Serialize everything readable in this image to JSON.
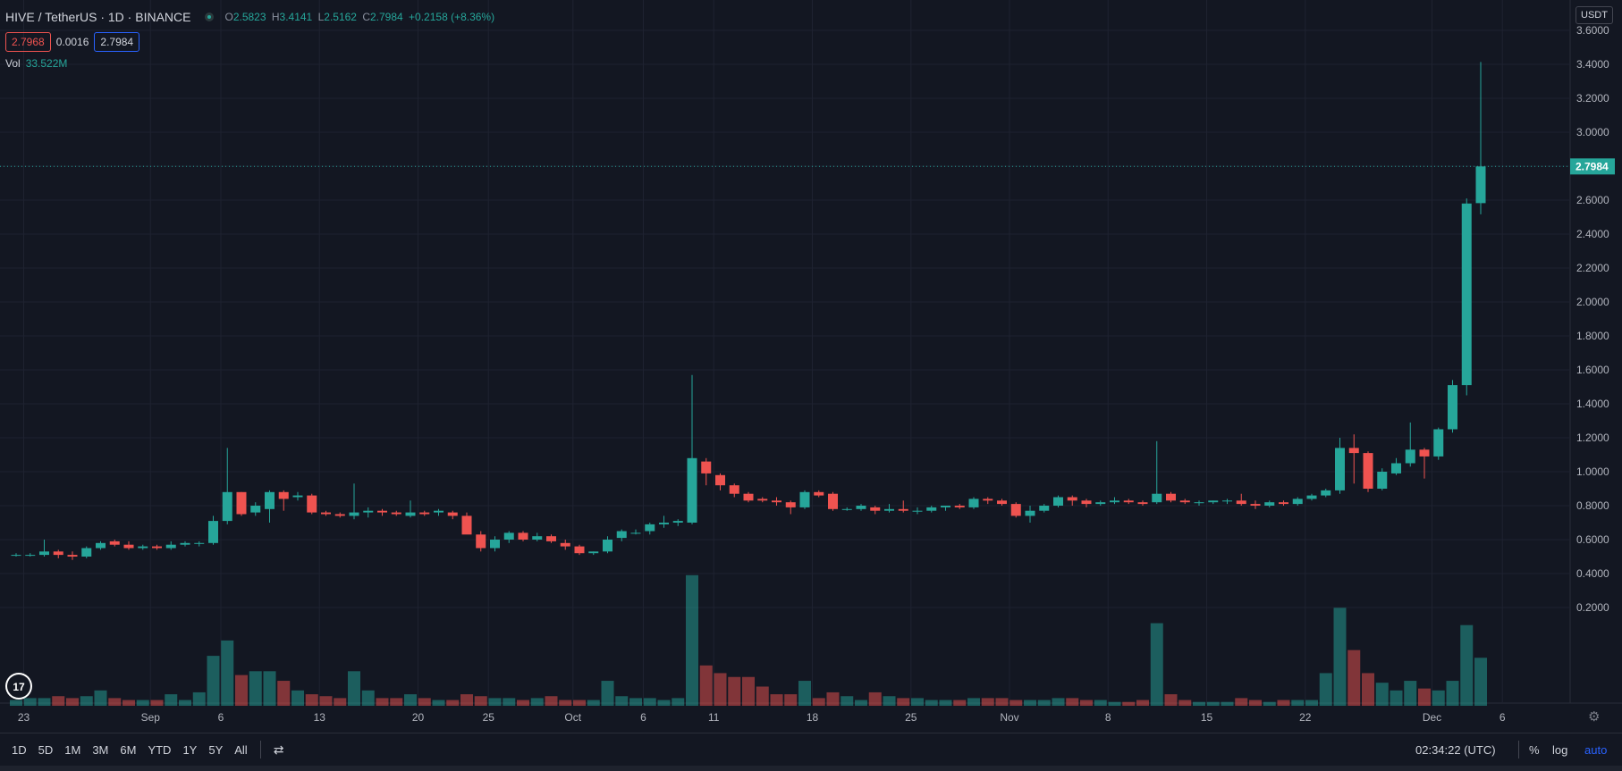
{
  "header": {
    "symbol": "HIVE / TetherUS · 1D · BINANCE",
    "ohlc": {
      "o_label": "O",
      "o": "2.5823",
      "h_label": "H",
      "h": "3.4141",
      "l_label": "L",
      "l": "2.5162",
      "c_label": "C",
      "c": "2.7984",
      "change": "+0.2158 (+8.36%)"
    },
    "bid": "2.7968",
    "spread": "0.0016",
    "ask": "2.7984",
    "vol_label": "Vol",
    "vol_value": "33.522M"
  },
  "axis_unit": "USDT",
  "last_price": "2.7984",
  "bottom": {
    "ranges": [
      "1D",
      "5D",
      "1M",
      "3M",
      "6M",
      "YTD",
      "1Y",
      "5Y",
      "All"
    ],
    "time": "02:34:22 (UTC)",
    "percent": "%",
    "log": "log",
    "auto": "auto"
  },
  "colors": {
    "up": "#26a69a",
    "down": "#ef5350",
    "bg": "#131722",
    "grid": "#1e2230"
  },
  "chart_data": {
    "type": "candlestick",
    "symbol": "HIVE / TetherUS",
    "interval": "1D",
    "exchange": "BINANCE",
    "y_range": [
      0.2,
      3.6
    ],
    "y_ticks": [
      "3.6000",
      "3.4000",
      "3.2000",
      "3.0000",
      "2.8000",
      "2.6000",
      "2.4000",
      "2.2000",
      "2.0000",
      "1.8000",
      "1.6000",
      "1.4000",
      "1.2000",
      "1.0000",
      "0.8000",
      "0.6000",
      "0.4000",
      "0.2000"
    ],
    "x_ticks": [
      {
        "label": "23",
        "index": 0
      },
      {
        "label": "Sep",
        "index": 9
      },
      {
        "label": "6",
        "index": 14
      },
      {
        "label": "13",
        "index": 21
      },
      {
        "label": "20",
        "index": 28
      },
      {
        "label": "25",
        "index": 33
      },
      {
        "label": "Oct",
        "index": 39
      },
      {
        "label": "6",
        "index": 44
      },
      {
        "label": "11",
        "index": 49
      },
      {
        "label": "18",
        "index": 56
      },
      {
        "label": "25",
        "index": 63
      },
      {
        "label": "Nov",
        "index": 70
      },
      {
        "label": "8",
        "index": 77
      },
      {
        "label": "15",
        "index": 84
      },
      {
        "label": "22",
        "index": 91
      },
      {
        "label": "Dec",
        "index": 100
      },
      {
        "label": "6",
        "index": 105
      }
    ],
    "candles": [
      [
        0.51,
        0.52,
        0.5,
        0.51,
        0.015
      ],
      [
        0.51,
        0.52,
        0.5,
        0.51,
        0.02
      ],
      [
        0.51,
        0.6,
        0.5,
        0.53,
        0.02
      ],
      [
        0.53,
        0.54,
        0.49,
        0.51,
        0.025
      ],
      [
        0.51,
        0.53,
        0.48,
        0.5,
        0.02
      ],
      [
        0.5,
        0.56,
        0.49,
        0.55,
        0.025
      ],
      [
        0.55,
        0.59,
        0.54,
        0.58,
        0.04
      ],
      [
        0.59,
        0.6,
        0.56,
        0.57,
        0.02
      ],
      [
        0.57,
        0.59,
        0.54,
        0.55,
        0.015
      ],
      [
        0.55,
        0.57,
        0.54,
        0.56,
        0.015
      ],
      [
        0.56,
        0.57,
        0.54,
        0.55,
        0.015
      ],
      [
        0.55,
        0.59,
        0.54,
        0.57,
        0.03
      ],
      [
        0.57,
        0.59,
        0.56,
        0.58,
        0.015
      ],
      [
        0.58,
        0.59,
        0.56,
        0.58,
        0.035
      ],
      [
        0.58,
        0.74,
        0.57,
        0.71,
        0.13
      ],
      [
        0.71,
        1.14,
        0.69,
        0.88,
        0.17
      ],
      [
        0.88,
        0.88,
        0.74,
        0.75,
        0.08
      ],
      [
        0.76,
        0.82,
        0.74,
        0.8,
        0.09
      ],
      [
        0.78,
        0.89,
        0.7,
        0.88,
        0.09
      ],
      [
        0.88,
        0.89,
        0.77,
        0.84,
        0.065
      ],
      [
        0.85,
        0.88,
        0.83,
        0.86,
        0.04
      ],
      [
        0.86,
        0.87,
        0.75,
        0.76,
        0.03
      ],
      [
        0.76,
        0.77,
        0.74,
        0.75,
        0.025
      ],
      [
        0.75,
        0.76,
        0.73,
        0.74,
        0.02
      ],
      [
        0.74,
        0.93,
        0.72,
        0.76,
        0.09
      ],
      [
        0.76,
        0.79,
        0.73,
        0.77,
        0.04
      ],
      [
        0.77,
        0.78,
        0.74,
        0.76,
        0.02
      ],
      [
        0.76,
        0.77,
        0.74,
        0.75,
        0.02
      ],
      [
        0.74,
        0.83,
        0.73,
        0.76,
        0.03
      ],
      [
        0.76,
        0.77,
        0.74,
        0.75,
        0.02
      ],
      [
        0.76,
        0.78,
        0.74,
        0.77,
        0.015
      ],
      [
        0.76,
        0.77,
        0.72,
        0.74,
        0.015
      ],
      [
        0.74,
        0.76,
        0.65,
        0.63,
        0.03
      ],
      [
        0.63,
        0.65,
        0.53,
        0.55,
        0.025
      ],
      [
        0.55,
        0.62,
        0.53,
        0.6,
        0.02
      ],
      [
        0.6,
        0.65,
        0.58,
        0.64,
        0.02
      ],
      [
        0.64,
        0.65,
        0.59,
        0.6,
        0.015
      ],
      [
        0.6,
        0.64,
        0.59,
        0.62,
        0.02
      ],
      [
        0.62,
        0.63,
        0.58,
        0.59,
        0.025
      ],
      [
        0.58,
        0.6,
        0.54,
        0.56,
        0.015
      ],
      [
        0.56,
        0.57,
        0.51,
        0.52,
        0.015
      ],
      [
        0.52,
        0.53,
        0.51,
        0.53,
        0.015
      ],
      [
        0.53,
        0.62,
        0.52,
        0.6,
        0.065
      ],
      [
        0.61,
        0.66,
        0.59,
        0.65,
        0.025
      ],
      [
        0.64,
        0.66,
        0.63,
        0.64,
        0.02
      ],
      [
        0.65,
        0.7,
        0.63,
        0.69,
        0.02
      ],
      [
        0.69,
        0.74,
        0.67,
        0.7,
        0.015
      ],
      [
        0.7,
        0.72,
        0.68,
        0.71,
        0.02
      ],
      [
        0.7,
        1.57,
        0.69,
        1.08,
        0.34
      ],
      [
        1.06,
        1.08,
        0.92,
        0.99,
        0.105
      ],
      [
        0.98,
        0.99,
        0.89,
        0.92,
        0.085
      ],
      [
        0.92,
        0.93,
        0.85,
        0.87,
        0.075
      ],
      [
        0.87,
        0.88,
        0.82,
        0.83,
        0.075
      ],
      [
        0.84,
        0.85,
        0.82,
        0.83,
        0.05
      ],
      [
        0.83,
        0.85,
        0.8,
        0.82,
        0.03
      ],
      [
        0.82,
        0.83,
        0.75,
        0.79,
        0.03
      ],
      [
        0.79,
        0.89,
        0.78,
        0.88,
        0.065
      ],
      [
        0.88,
        0.89,
        0.85,
        0.86,
        0.02
      ],
      [
        0.87,
        0.88,
        0.77,
        0.78,
        0.035
      ],
      [
        0.78,
        0.79,
        0.77,
        0.78,
        0.025
      ],
      [
        0.78,
        0.81,
        0.77,
        0.8,
        0.015
      ],
      [
        0.79,
        0.8,
        0.75,
        0.77,
        0.035
      ],
      [
        0.77,
        0.81,
        0.76,
        0.78,
        0.025
      ],
      [
        0.78,
        0.83,
        0.76,
        0.77,
        0.02
      ],
      [
        0.77,
        0.79,
        0.75,
        0.77,
        0.02
      ],
      [
        0.77,
        0.8,
        0.76,
        0.79,
        0.015
      ],
      [
        0.79,
        0.8,
        0.77,
        0.8,
        0.015
      ],
      [
        0.8,
        0.81,
        0.78,
        0.79,
        0.015
      ],
      [
        0.79,
        0.85,
        0.78,
        0.84,
        0.02
      ],
      [
        0.84,
        0.85,
        0.81,
        0.83,
        0.02
      ],
      [
        0.83,
        0.84,
        0.8,
        0.81,
        0.02
      ],
      [
        0.81,
        0.82,
        0.73,
        0.74,
        0.015
      ],
      [
        0.74,
        0.8,
        0.7,
        0.77,
        0.015
      ],
      [
        0.77,
        0.81,
        0.76,
        0.8,
        0.015
      ],
      [
        0.8,
        0.86,
        0.79,
        0.85,
        0.02
      ],
      [
        0.85,
        0.86,
        0.8,
        0.83,
        0.02
      ],
      [
        0.83,
        0.84,
        0.79,
        0.81,
        0.015
      ],
      [
        0.81,
        0.83,
        0.8,
        0.82,
        0.015
      ],
      [
        0.82,
        0.85,
        0.81,
        0.83,
        0.01
      ],
      [
        0.83,
        0.84,
        0.81,
        0.82,
        0.01
      ],
      [
        0.82,
        0.83,
        0.8,
        0.81,
        0.015
      ],
      [
        0.82,
        1.18,
        0.81,
        0.87,
        0.215
      ],
      [
        0.87,
        0.88,
        0.82,
        0.83,
        0.03
      ],
      [
        0.83,
        0.84,
        0.81,
        0.82,
        0.015
      ],
      [
        0.82,
        0.83,
        0.8,
        0.82,
        0.01
      ],
      [
        0.82,
        0.83,
        0.81,
        0.83,
        0.01
      ],
      [
        0.83,
        0.84,
        0.81,
        0.83,
        0.01
      ],
      [
        0.83,
        0.87,
        0.8,
        0.81,
        0.02
      ],
      [
        0.81,
        0.83,
        0.78,
        0.8,
        0.015
      ],
      [
        0.8,
        0.83,
        0.79,
        0.82,
        0.01
      ],
      [
        0.82,
        0.83,
        0.8,
        0.81,
        0.015
      ],
      [
        0.81,
        0.85,
        0.8,
        0.84,
        0.015
      ],
      [
        0.84,
        0.87,
        0.83,
        0.86,
        0.015
      ],
      [
        0.86,
        0.9,
        0.85,
        0.89,
        0.085
      ],
      [
        0.89,
        1.2,
        0.87,
        1.14,
        0.255
      ],
      [
        1.14,
        1.22,
        0.93,
        1.11,
        0.145
      ],
      [
        1.11,
        1.12,
        0.88,
        0.9,
        0.085
      ],
      [
        0.9,
        1.02,
        0.89,
        1.0,
        0.06
      ],
      [
        0.99,
        1.08,
        0.98,
        1.05,
        0.04
      ],
      [
        1.05,
        1.29,
        1.03,
        1.13,
        0.065
      ],
      [
        1.13,
        1.14,
        0.96,
        1.09,
        0.045
      ],
      [
        1.09,
        1.26,
        1.07,
        1.25,
        0.04
      ],
      [
        1.25,
        1.54,
        1.23,
        1.51,
        0.065
      ],
      [
        1.51,
        2.61,
        1.45,
        2.58,
        0.21
      ],
      [
        2.5823,
        3.4141,
        2.5162,
        2.7984,
        0.125
      ]
    ]
  }
}
